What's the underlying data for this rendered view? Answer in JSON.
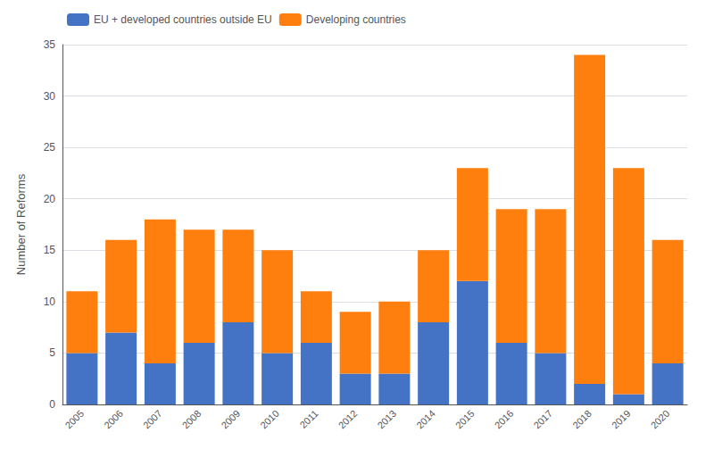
{
  "chart_data": {
    "type": "bar",
    "stacked": true,
    "categories": [
      "2005",
      "2006",
      "2007",
      "2008",
      "2009",
      "2010",
      "2011",
      "2012",
      "2013",
      "2014",
      "2015",
      "2016",
      "2017",
      "2018",
      "2019",
      "2020"
    ],
    "series": [
      {
        "name": "EU + developed countries outside EU",
        "color": "#4472c4",
        "values": [
          5,
          7,
          4,
          6,
          8,
          5,
          6,
          3,
          3,
          8,
          12,
          6,
          5,
          2,
          1,
          4
        ]
      },
      {
        "name": "Developing countries",
        "color": "#ff7f0e",
        "values": [
          6,
          9,
          14,
          11,
          9,
          10,
          5,
          6,
          7,
          7,
          11,
          13,
          14,
          32,
          22,
          12
        ]
      }
    ],
    "ylabel": "Number of Reforms",
    "ylim": [
      0,
      35
    ],
    "yticks": [
      0,
      5,
      10,
      15,
      20,
      25,
      30,
      35
    ],
    "grid": true,
    "legend": "upper left"
  }
}
